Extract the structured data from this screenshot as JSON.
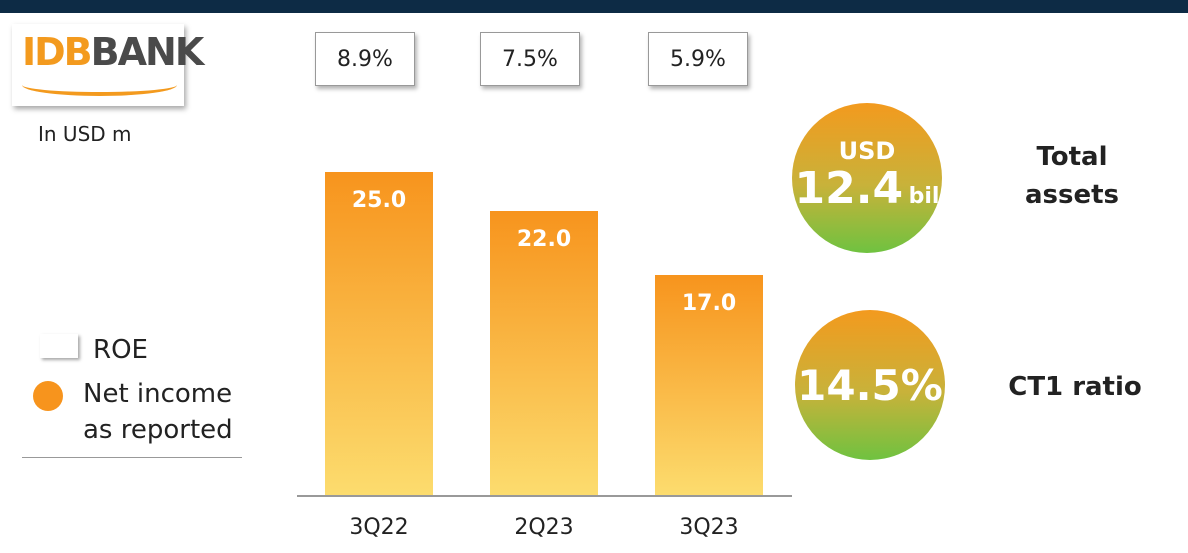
{
  "logo": {
    "left": "IDB",
    "right": "BANK"
  },
  "chart_data": {
    "type": "bar",
    "subtitle": "In USD m",
    "categories": [
      "3Q22",
      "2Q23",
      "3Q23"
    ],
    "series": [
      {
        "name": "ROE",
        "color": "#ffffff",
        "values": [
          8.9,
          7.5,
          5.9
        ],
        "value_labels": [
          "8.9%",
          "7.5%",
          "5.9%"
        ]
      },
      {
        "name": "Net income as reported",
        "color": "#f7941d",
        "values": [
          25.0,
          22.0,
          17.0
        ],
        "value_labels": [
          "25.0",
          "22.0",
          "17.0"
        ]
      }
    ]
  },
  "kpis": [
    {
      "prefix": "USD",
      "value": "12.4",
      "unit": "bil",
      "label": "Total assets"
    },
    {
      "value": "14.5%",
      "label": "CT1 ratio"
    }
  ]
}
